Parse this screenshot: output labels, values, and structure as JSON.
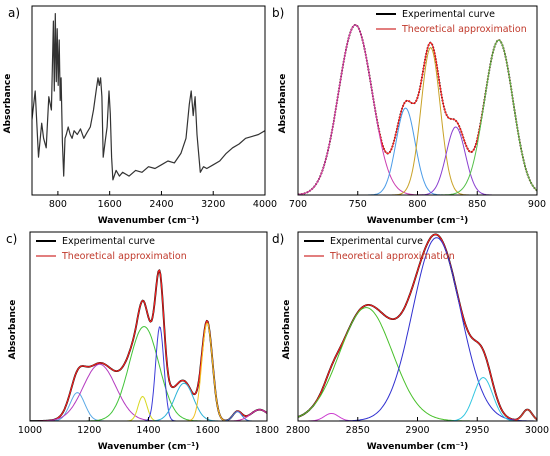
{
  "chart_data": [
    {
      "type": "line",
      "panel_label": "a)",
      "xlabel": "Wavenumber",
      "xunit": "(cm⁻¹)",
      "ylabel": "Absorbance",
      "xlim": [
        400,
        4000
      ],
      "xticks": [
        "800",
        "1600",
        "2400",
        "3200",
        "4000"
      ],
      "grid": false,
      "series": [
        {
          "color": "#333333",
          "x": [
            400,
            450,
            500,
            550,
            580,
            620,
            660,
            700,
            730,
            745,
            760,
            775,
            790,
            805,
            820,
            835,
            850,
            870,
            890,
            910,
            930,
            960,
            990,
            1020,
            1050,
            1100,
            1150,
            1200,
            1250,
            1300,
            1350,
            1390,
            1420,
            1440,
            1460,
            1480,
            1500,
            1530,
            1560,
            1590,
            1610,
            1630,
            1650,
            1700,
            1750,
            1800,
            1900,
            2000,
            2100,
            2200,
            2300,
            2400,
            2500,
            2600,
            2700,
            2780,
            2830,
            2860,
            2890,
            2920,
            2950,
            2970,
            3000,
            3050,
            3100,
            3200,
            3300,
            3400,
            3500,
            3600,
            3700,
            3800,
            3900,
            4000
          ],
          "y": [
            0.4,
            0.55,
            0.2,
            0.38,
            0.3,
            0.25,
            0.52,
            0.45,
            0.92,
            0.55,
            0.96,
            0.6,
            0.88,
            0.58,
            0.82,
            0.5,
            0.62,
            0.28,
            0.1,
            0.3,
            0.32,
            0.36,
            0.32,
            0.3,
            0.34,
            0.32,
            0.35,
            0.3,
            0.33,
            0.36,
            0.45,
            0.55,
            0.62,
            0.58,
            0.62,
            0.52,
            0.2,
            0.28,
            0.36,
            0.55,
            0.43,
            0.2,
            0.08,
            0.13,
            0.1,
            0.12,
            0.1,
            0.13,
            0.12,
            0.15,
            0.14,
            0.16,
            0.18,
            0.17,
            0.22,
            0.3,
            0.48,
            0.55,
            0.42,
            0.52,
            0.32,
            0.24,
            0.12,
            0.15,
            0.14,
            0.16,
            0.18,
            0.22,
            0.25,
            0.27,
            0.3,
            0.31,
            0.32,
            0.34
          ]
        }
      ]
    },
    {
      "type": "line",
      "panel_label": "b)",
      "xlabel": "Wavenumber",
      "xunit": "(cm⁻¹)",
      "ylabel": "Absorbance",
      "xlim": [
        700,
        900
      ],
      "xticks": [
        "700",
        "750",
        "800",
        "850",
        "900"
      ],
      "grid": false,
      "legend": [
        "Experimental curve",
        "Theoretical approximation"
      ],
      "legend_position": "top-right",
      "series": [
        {
          "color": "#000000",
          "kind": "sum",
          "dashed": true
        },
        {
          "color": "#ff2020",
          "kind": "sum"
        },
        {
          "color": "#cc3fb0",
          "kind": "peak",
          "center": 748,
          "height": 0.9,
          "sigma": 14
        },
        {
          "color": "#4a9be8",
          "kind": "peak",
          "center": 790,
          "height": 0.46,
          "sigma": 8
        },
        {
          "color": "#c9a227",
          "kind": "peak",
          "center": 811,
          "height": 0.78,
          "sigma": 8
        },
        {
          "color": "#8a3fd0",
          "kind": "peak",
          "center": 832,
          "height": 0.36,
          "sigma": 8
        },
        {
          "color": "#55c04a",
          "kind": "peak",
          "center": 868,
          "height": 0.82,
          "sigma": 12
        }
      ]
    },
    {
      "type": "line",
      "panel_label": "c)",
      "xlabel": "Wavenumber",
      "xunit": "(cm⁻¹)",
      "ylabel": "Absorbance",
      "xlim": [
        1000,
        1800
      ],
      "xticks": [
        "1000",
        "1200",
        "1400",
        "1600",
        "1800"
      ],
      "grid": false,
      "legend": [
        "Experimental curve",
        "Theoretical approximation"
      ],
      "legend_position": "top-left",
      "series": [
        {
          "color": "#000000",
          "kind": "sum"
        },
        {
          "color": "#ff2020",
          "kind": "sum"
        },
        {
          "color": "#5aa9e6",
          "kind": "peak",
          "center": 1160,
          "height": 0.15,
          "sigma": 25
        },
        {
          "color": "#b53bc0",
          "kind": "peak",
          "center": 1235,
          "height": 0.3,
          "sigma": 55
        },
        {
          "color": "#42c43a",
          "kind": "peak",
          "center": 1385,
          "height": 0.5,
          "sigma": 50
        },
        {
          "color": "#d8d820",
          "kind": "peak",
          "center": 1380,
          "height": 0.13,
          "sigma": 15
        },
        {
          "color": "#3b3bd8",
          "kind": "peak",
          "center": 1438,
          "height": 0.5,
          "sigma": 14
        },
        {
          "color": "#2db3d8",
          "kind": "peak",
          "center": 1520,
          "height": 0.2,
          "sigma": 32
        },
        {
          "color": "#f0c020",
          "kind": "peak",
          "center": 1598,
          "height": 0.52,
          "sigma": 18
        },
        {
          "color": "#3a7ae0",
          "kind": "peak",
          "center": 1700,
          "height": 0.05,
          "sigma": 15
        },
        {
          "color": "#cc2fb0",
          "kind": "peak",
          "center": 1775,
          "height": 0.06,
          "sigma": 30
        }
      ]
    },
    {
      "type": "line",
      "panel_label": "d)",
      "xlabel": "Wavenumber",
      "xunit": "(cm⁻¹)",
      "ylabel": "Absorbance",
      "xlim": [
        2800,
        3000
      ],
      "xticks": [
        "2800",
        "2850",
        "2900",
        "2950",
        "3000"
      ],
      "grid": false,
      "legend": [
        "Experimental curve",
        "Theoretical approximation"
      ],
      "legend_position": "top-left",
      "series": [
        {
          "color": "#000000",
          "kind": "sum"
        },
        {
          "color": "#ff2020",
          "kind": "sum"
        },
        {
          "color": "#cc3fd0",
          "kind": "peak",
          "center": 2828,
          "height": 0.04,
          "sigma": 6
        },
        {
          "color": "#48c02a",
          "kind": "peak",
          "center": 2857,
          "height": 0.6,
          "sigma": 22
        },
        {
          "color": "#3030d0",
          "kind": "peak",
          "center": 2916,
          "height": 0.97,
          "sigma": 20
        },
        {
          "color": "#33c6e0",
          "kind": "peak",
          "center": 2955,
          "height": 0.23,
          "sigma": 8
        },
        {
          "color": "#d04030",
          "kind": "peak",
          "center": 2992,
          "height": 0.06,
          "sigma": 4
        }
      ]
    }
  ]
}
